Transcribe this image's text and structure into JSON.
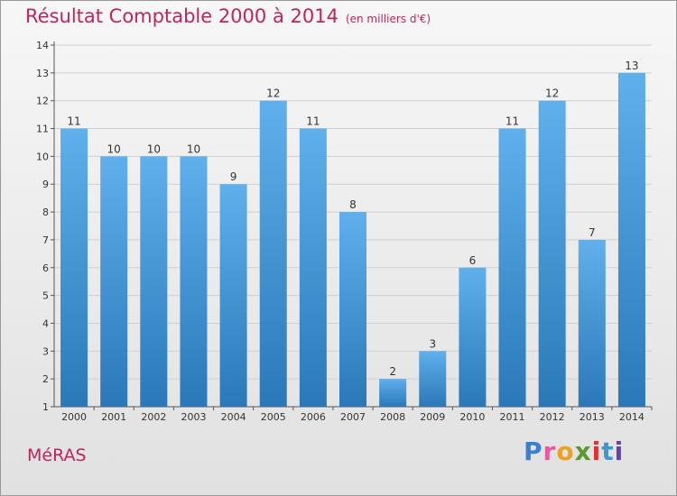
{
  "chart_data": {
    "type": "bar",
    "title": "Résultat Comptable 2000 à 2014",
    "subtitle": "(en milliers d'€)",
    "categories": [
      "2000",
      "2001",
      "2002",
      "2003",
      "2004",
      "2005",
      "2006",
      "2007",
      "2008",
      "2009",
      "2010",
      "2011",
      "2012",
      "2013",
      "2014"
    ],
    "values": [
      11,
      10,
      10,
      10,
      9,
      12,
      11,
      8,
      2,
      3,
      6,
      11,
      12,
      7,
      13
    ],
    "ylim": [
      1,
      14
    ],
    "yticks": [
      1,
      2,
      3,
      4,
      5,
      6,
      7,
      8,
      9,
      10,
      11,
      12,
      13,
      14
    ],
    "grid": true,
    "xlabel": "",
    "ylabel": ""
  },
  "commune": "MéRAS",
  "logo": {
    "letters": [
      "P",
      "r",
      "o",
      "x",
      "i",
      "t",
      "i"
    ],
    "colors": [
      "#3a7fd0",
      "#e85aa0",
      "#f0a020",
      "#5a9a30",
      "#e03030",
      "#3a9ad0",
      "#6a40b0"
    ]
  },
  "colors": {
    "title": "#c0245c",
    "bar_light": "#5fb0ec",
    "bar_dark": "#2a78b8",
    "grid": "#cfcfcf"
  }
}
